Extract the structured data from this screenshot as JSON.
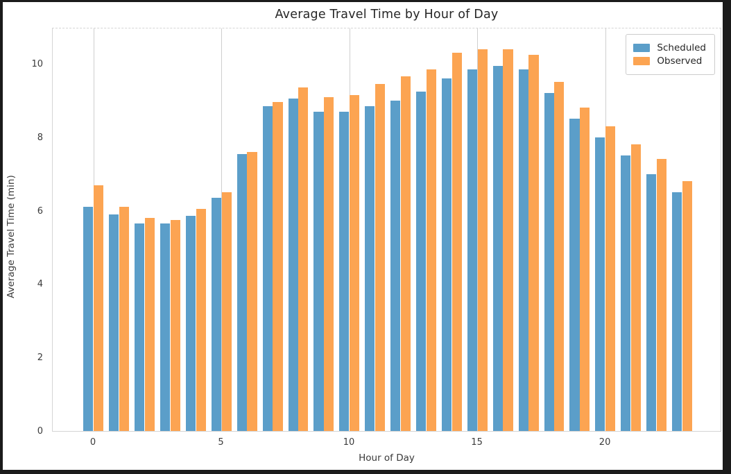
{
  "figure": {
    "background": "#ffffff",
    "frame_color": "#1b1b1b",
    "gridline_color": "#cfcfcf",
    "spine_color": "#d4d4d4",
    "text_color": "#3a3a3a"
  },
  "chart_data": {
    "type": "bar",
    "title": "Average Travel Time by Hour of Day",
    "xlabel": "Hour of Day",
    "ylabel": "Average Travel Time (min)",
    "categories": [
      0,
      1,
      2,
      3,
      4,
      5,
      6,
      7,
      8,
      9,
      10,
      11,
      12,
      13,
      14,
      15,
      16,
      17,
      18,
      19,
      20,
      21,
      22,
      23
    ],
    "series": [
      {
        "name": "Scheduled",
        "color": "#5B9EC9",
        "values": [
          6.1,
          5.9,
          5.65,
          5.65,
          5.85,
          6.35,
          7.55,
          8.85,
          9.05,
          8.7,
          8.7,
          8.85,
          9.0,
          9.25,
          9.6,
          9.85,
          9.95,
          9.85,
          9.2,
          8.5,
          8.0,
          7.5,
          7.0,
          6.5
        ]
      },
      {
        "name": "Observed",
        "color": "#FCA452",
        "values": [
          6.7,
          6.1,
          5.8,
          5.75,
          6.05,
          6.5,
          7.6,
          8.95,
          9.35,
          9.1,
          9.15,
          9.45,
          9.65,
          9.85,
          10.3,
          10.4,
          10.4,
          10.25,
          9.5,
          8.8,
          8.3,
          7.8,
          7.4,
          6.8
        ]
      }
    ],
    "bar_width": 0.4,
    "ylim": [
      0,
      11
    ],
    "xlim": [
      -1.6,
      24.55
    ],
    "yticks": [
      0,
      2,
      4,
      6,
      8,
      10
    ],
    "xticks": [
      0,
      5,
      10,
      15,
      20
    ],
    "grid": "vertical-only",
    "legend_position": "upper-right"
  }
}
